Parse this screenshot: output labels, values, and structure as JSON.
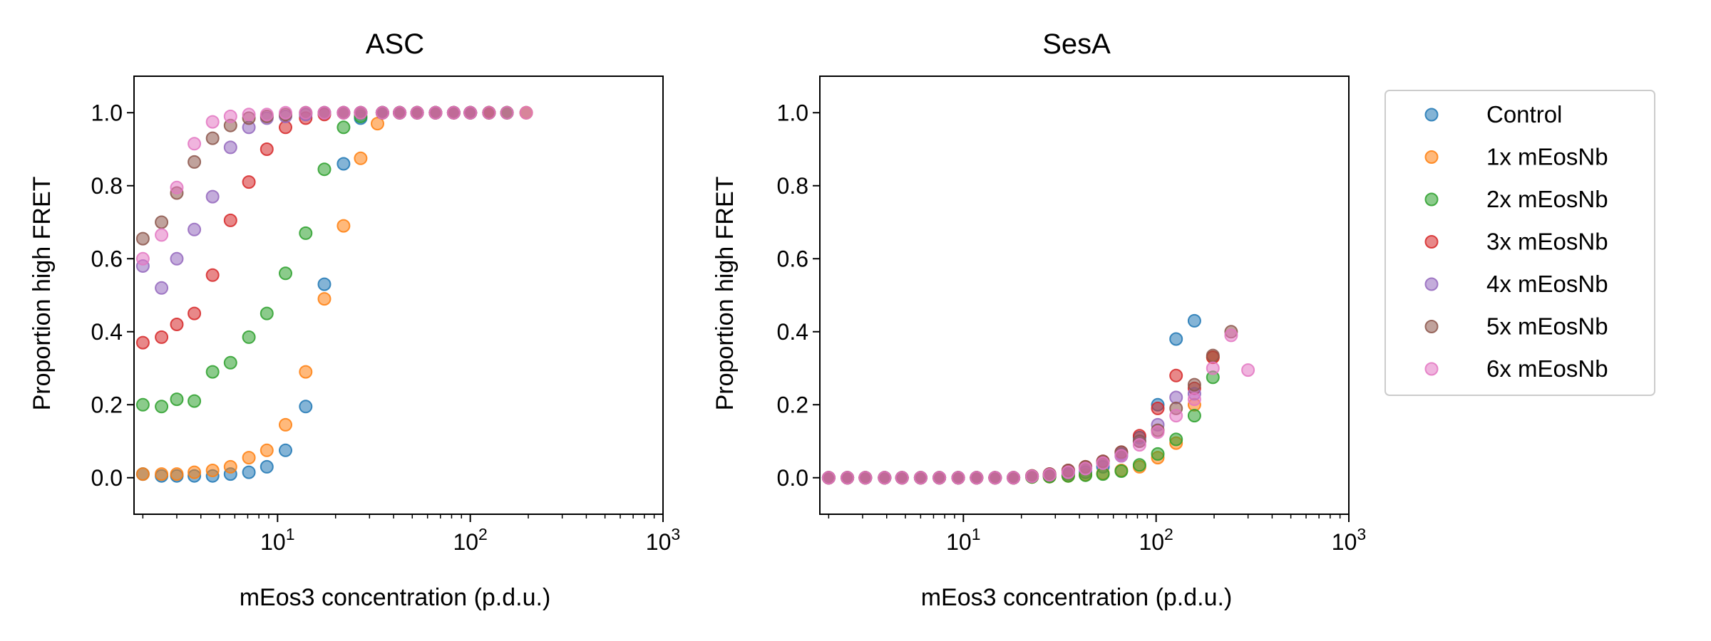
{
  "legend_position": "right, outside plots",
  "chart_data": [
    {
      "type": "scatter",
      "title": "ASC",
      "xlabel": "mEos3 concentration (p.d.u.)",
      "ylabel": "Proportion high FRET",
      "xscale": "log",
      "xlim": [
        1.8,
        1000
      ],
      "ylim": [
        -0.1,
        1.1
      ],
      "xticks": [
        {
          "value": 10,
          "base": "10",
          "exp": "1"
        },
        {
          "value": 100,
          "base": "10",
          "exp": "2"
        },
        {
          "value": 1000,
          "base": "10",
          "exp": "3"
        }
      ],
      "yticks": [
        "0.0",
        "0.2",
        "0.4",
        "0.6",
        "0.8",
        "1.0"
      ],
      "grid": false,
      "series": [
        {
          "name": "Control",
          "color": "#1f77b4",
          "x": [
            2.0,
            2.5,
            3.0,
            3.7,
            4.6,
            5.7,
            7.1,
            8.8,
            11.0,
            14.0,
            17.5,
            22.0,
            27.0,
            35.0,
            43.0,
            53.0,
            66.0,
            82.0,
            100.0,
            125.0,
            155.0,
            195.0
          ],
          "y": [
            0.01,
            0.005,
            0.005,
            0.005,
            0.005,
            0.01,
            0.015,
            0.03,
            0.075,
            0.195,
            0.53,
            0.86,
            0.985,
            1.0,
            1.0,
            1.0,
            1.0,
            1.0,
            1.0,
            1.0,
            1.0,
            1.0
          ]
        },
        {
          "name": "1x mEosNb",
          "color": "#ff7f0e",
          "x": [
            2.0,
            2.5,
            3.0,
            3.7,
            4.6,
            5.7,
            7.1,
            8.8,
            11.0,
            14.0,
            17.5,
            22.0,
            27.0,
            33.0,
            43.0,
            53.0,
            66.0,
            82.0,
            100.0,
            125.0,
            155.0,
            195.0
          ],
          "y": [
            0.01,
            0.01,
            0.01,
            0.015,
            0.02,
            0.03,
            0.055,
            0.075,
            0.145,
            0.29,
            0.49,
            0.69,
            0.875,
            0.97,
            1.0,
            1.0,
            1.0,
            1.0,
            1.0,
            1.0,
            1.0,
            1.0
          ]
        },
        {
          "name": "2x mEosNb",
          "color": "#2ca02c",
          "x": [
            2.0,
            2.5,
            3.0,
            3.7,
            4.6,
            5.7,
            7.1,
            8.8,
            11.0,
            14.0,
            17.5,
            22.0,
            27.0,
            35.0,
            43.0,
            53.0,
            66.0,
            82.0,
            100.0,
            125.0,
            155.0
          ],
          "y": [
            0.2,
            0.195,
            0.215,
            0.21,
            0.29,
            0.315,
            0.385,
            0.45,
            0.56,
            0.67,
            0.845,
            0.96,
            0.99,
            1.0,
            1.0,
            1.0,
            1.0,
            1.0,
            1.0,
            1.0,
            1.0
          ]
        },
        {
          "name": "3x mEosNb",
          "color": "#d62728",
          "x": [
            2.0,
            2.5,
            3.0,
            3.7,
            4.6,
            5.7,
            7.1,
            8.8,
            11.0,
            14.0,
            17.5,
            22.0,
            27.0,
            35.0,
            43.0,
            53.0,
            66.0,
            82.0,
            100.0,
            125.0
          ],
          "y": [
            0.37,
            0.385,
            0.42,
            0.45,
            0.555,
            0.705,
            0.81,
            0.9,
            0.96,
            0.985,
            0.995,
            1.0,
            1.0,
            1.0,
            1.0,
            1.0,
            1.0,
            1.0,
            1.0,
            1.0
          ]
        },
        {
          "name": "4x mEosNb",
          "color": "#9467bd",
          "x": [
            2.0,
            2.5,
            3.0,
            3.7,
            4.6,
            5.7,
            7.1,
            8.8,
            11.0,
            14.0,
            17.5,
            22.0,
            27.0,
            35.0,
            43.0,
            53.0,
            66.0,
            82.0,
            100.0
          ],
          "y": [
            0.58,
            0.52,
            0.6,
            0.68,
            0.77,
            0.905,
            0.96,
            0.985,
            0.99,
            0.995,
            1.0,
            1.0,
            1.0,
            1.0,
            1.0,
            1.0,
            1.0,
            1.0,
            1.0
          ]
        },
        {
          "name": "5x mEosNb",
          "color": "#8c564b",
          "x": [
            2.0,
            2.5,
            3.0,
            3.7,
            4.6,
            5.7,
            7.1,
            8.8,
            11.0,
            14.0,
            17.5,
            22.0,
            27.0,
            35.0,
            43.0,
            53.0,
            66.0,
            82.0,
            100.0,
            125.0,
            155.0
          ],
          "y": [
            0.655,
            0.7,
            0.78,
            0.865,
            0.93,
            0.965,
            0.985,
            0.99,
            0.995,
            1.0,
            1.0,
            1.0,
            1.0,
            1.0,
            1.0,
            1.0,
            1.0,
            1.0,
            1.0,
            1.0,
            1.0
          ]
        },
        {
          "name": "6x mEosNb",
          "color": "#e377c2",
          "x": [
            2.0,
            2.5,
            3.0,
            3.7,
            4.6,
            5.7,
            7.1,
            8.8,
            11.0,
            14.0,
            17.5,
            22.0,
            27.0,
            35.0,
            43.0,
            53.0,
            66.0,
            82.0,
            100.0,
            125.0,
            155.0,
            195.0
          ],
          "y": [
            0.6,
            0.665,
            0.795,
            0.915,
            0.975,
            0.99,
            0.995,
            0.995,
            1.0,
            1.0,
            1.0,
            1.0,
            1.0,
            1.0,
            1.0,
            1.0,
            1.0,
            1.0,
            1.0,
            1.0,
            1.0,
            1.0
          ]
        }
      ]
    },
    {
      "type": "scatter",
      "title": "SesA",
      "xlabel": "mEos3 concentration (p.d.u.)",
      "ylabel": "Proportion high FRET",
      "xscale": "log",
      "xlim": [
        1.8,
        1000
      ],
      "ylim": [
        -0.1,
        1.1
      ],
      "xticks": [
        {
          "value": 10,
          "base": "10",
          "exp": "1"
        },
        {
          "value": 100,
          "base": "10",
          "exp": "2"
        },
        {
          "value": 1000,
          "base": "10",
          "exp": "3"
        }
      ],
      "yticks": [
        "0.0",
        "0.2",
        "0.4",
        "0.6",
        "0.8",
        "1.0"
      ],
      "grid": false,
      "series": [
        {
          "name": "Control",
          "color": "#1f77b4",
          "x": [
            2.0,
            2.5,
            3.1,
            3.9,
            4.8,
            6.0,
            7.5,
            9.4,
            11.7,
            14.6,
            18.2,
            22.7,
            28.0,
            35.0,
            43.0,
            53.0,
            66.0,
            82.0,
            102.0,
            127.0,
            158.0
          ],
          "y": [
            0,
            0,
            0,
            0,
            0,
            0,
            0,
            0,
            0,
            0,
            0,
            0.003,
            0.005,
            0.01,
            0.015,
            0.03,
            0.06,
            0.11,
            0.2,
            0.38,
            0.43
          ]
        },
        {
          "name": "1x mEosNb",
          "color": "#ff7f0e",
          "x": [
            2.0,
            2.5,
            3.1,
            3.9,
            4.8,
            6.0,
            7.5,
            9.4,
            11.7,
            14.6,
            18.2,
            22.7,
            28.0,
            35.0,
            43.0,
            53.0,
            66.0,
            82.0,
            102.0,
            127.0,
            158.0,
            197.0
          ],
          "y": [
            0,
            0,
            0,
            0,
            0,
            0,
            0,
            0,
            0,
            0,
            0,
            0.002,
            0.003,
            0.005,
            0.008,
            0.012,
            0.02,
            0.03,
            0.055,
            0.095,
            0.2,
            0.33
          ]
        },
        {
          "name": "2x mEosNb",
          "color": "#2ca02c",
          "x": [
            2.0,
            2.5,
            3.1,
            3.9,
            4.8,
            6.0,
            7.5,
            9.4,
            11.7,
            14.6,
            18.2,
            22.7,
            28.0,
            35.0,
            43.0,
            53.0,
            66.0,
            82.0,
            102.0,
            127.0,
            158.0,
            197.0
          ],
          "y": [
            0,
            0,
            0,
            0,
            0,
            0,
            0,
            0,
            0,
            0,
            0,
            0.002,
            0.003,
            0.005,
            0.007,
            0.01,
            0.018,
            0.035,
            0.065,
            0.105,
            0.17,
            0.275
          ]
        },
        {
          "name": "3x mEosNb",
          "color": "#d62728",
          "x": [
            2.0,
            2.5,
            3.1,
            3.9,
            4.8,
            6.0,
            7.5,
            9.4,
            11.7,
            14.6,
            18.2,
            22.7,
            28.0,
            35.0,
            43.0,
            53.0,
            66.0,
            82.0,
            102.0,
            127.0,
            158.0,
            197.0
          ],
          "y": [
            0,
            0,
            0,
            0,
            0,
            0,
            0,
            0,
            0,
            0,
            0,
            0.005,
            0.01,
            0.02,
            0.03,
            0.045,
            0.07,
            0.115,
            0.19,
            0.28,
            0.245,
            0.33
          ]
        },
        {
          "name": "4x mEosNb",
          "color": "#9467bd",
          "x": [
            2.0,
            2.5,
            3.1,
            3.9,
            4.8,
            6.0,
            7.5,
            9.4,
            11.7,
            14.6,
            18.2,
            22.7,
            28.0,
            35.0,
            43.0,
            53.0,
            66.0,
            82.0,
            102.0,
            127.0,
            158.0
          ],
          "y": [
            0,
            0,
            0,
            0,
            0,
            0,
            0,
            0,
            0,
            0,
            0,
            0.004,
            0.008,
            0.015,
            0.025,
            0.04,
            0.065,
            0.1,
            0.145,
            0.22,
            0.23
          ]
        },
        {
          "name": "5x mEosNb",
          "color": "#8c564b",
          "x": [
            2.0,
            2.5,
            3.1,
            3.9,
            4.8,
            6.0,
            7.5,
            9.4,
            11.7,
            14.6,
            18.2,
            22.7,
            28.0,
            35.0,
            43.0,
            53.0,
            66.0,
            82.0,
            102.0,
            127.0,
            158.0,
            197.0,
            245.0
          ],
          "y": [
            0,
            0,
            0,
            0,
            0,
            0,
            0,
            0,
            0,
            0,
            0,
            0.005,
            0.01,
            0.02,
            0.03,
            0.045,
            0.07,
            0.1,
            0.13,
            0.19,
            0.255,
            0.335,
            0.4
          ]
        },
        {
          "name": "6x mEosNb",
          "color": "#e377c2",
          "x": [
            2.0,
            2.5,
            3.1,
            3.9,
            4.8,
            6.0,
            7.5,
            9.4,
            11.7,
            14.6,
            18.2,
            22.7,
            28.0,
            35.0,
            43.0,
            53.0,
            66.0,
            82.0,
            102.0,
            127.0,
            158.0,
            197.0,
            245.0,
            300.0
          ],
          "y": [
            0,
            0,
            0,
            0,
            0,
            0,
            0,
            0,
            0,
            0,
            0,
            0.004,
            0.008,
            0.015,
            0.025,
            0.04,
            0.06,
            0.09,
            0.125,
            0.17,
            0.215,
            0.3,
            0.39,
            0.295
          ]
        }
      ]
    }
  ]
}
